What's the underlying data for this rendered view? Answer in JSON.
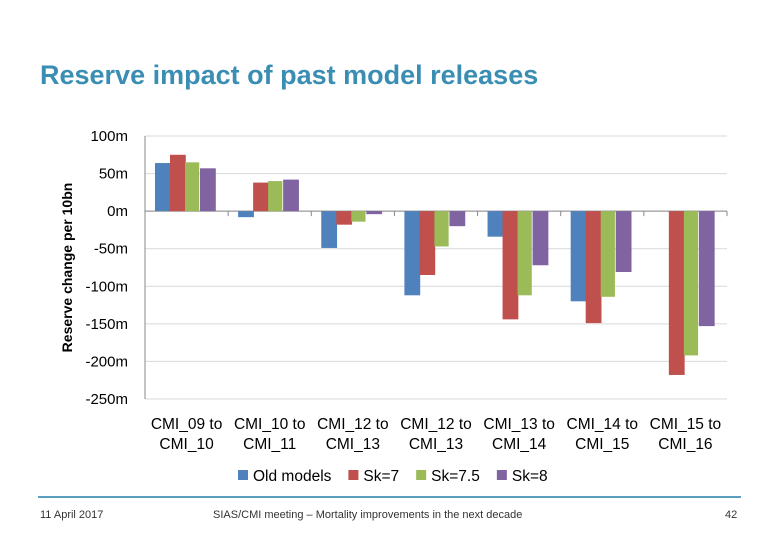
{
  "slide": {
    "title": "Reserve impact of past model releases",
    "footer_date": "11 April 2017",
    "footer_text": "SIAS/CMI meeting – Mortality improvements in the next decade",
    "page_number": "42",
    "accent_color": "#3a8eb3"
  },
  "chart_data": {
    "type": "bar",
    "title": "",
    "xlabel": "",
    "ylabel": "Reserve change per 10bn",
    "ylim": [
      -250,
      100
    ],
    "yticks": [
      100,
      50,
      0,
      -50,
      -100,
      -150,
      -200,
      -250
    ],
    "ytick_labels": [
      "100m",
      "50m",
      "0m",
      "-50m",
      "-100m",
      "-150m",
      "-200m",
      "-250m"
    ],
    "grid": true,
    "legend_position": "bottom",
    "categories": [
      [
        "CMI_09 to",
        "CMI_10"
      ],
      [
        "CMI_10 to",
        "CMI_11"
      ],
      [
        "CMI_12 to",
        "CMI_13"
      ],
      [
        "CMI_12 to",
        "CMI_13"
      ],
      [
        "CMI_13 to",
        "CMI_14"
      ],
      [
        "CMI_14 to",
        "CMI_15"
      ],
      [
        "CMI_15 to",
        "CMI_16"
      ]
    ],
    "series": [
      {
        "name": "Old models",
        "color": "#4f81bd",
        "values": [
          64,
          -8,
          -49,
          -112,
          -34,
          -120,
          null
        ]
      },
      {
        "name": "Sk=7",
        "color": "#c0504d",
        "values": [
          75,
          38,
          -18,
          -85,
          -144,
          -149,
          -218
        ]
      },
      {
        "name": "Sk=7.5",
        "color": "#9bbb59",
        "values": [
          65,
          40,
          -14,
          -47,
          -112,
          -114,
          -192
        ]
      },
      {
        "name": "Sk=8",
        "color": "#8064a2",
        "values": [
          57,
          42,
          -4,
          -20,
          -72,
          -81,
          -153
        ]
      }
    ]
  }
}
